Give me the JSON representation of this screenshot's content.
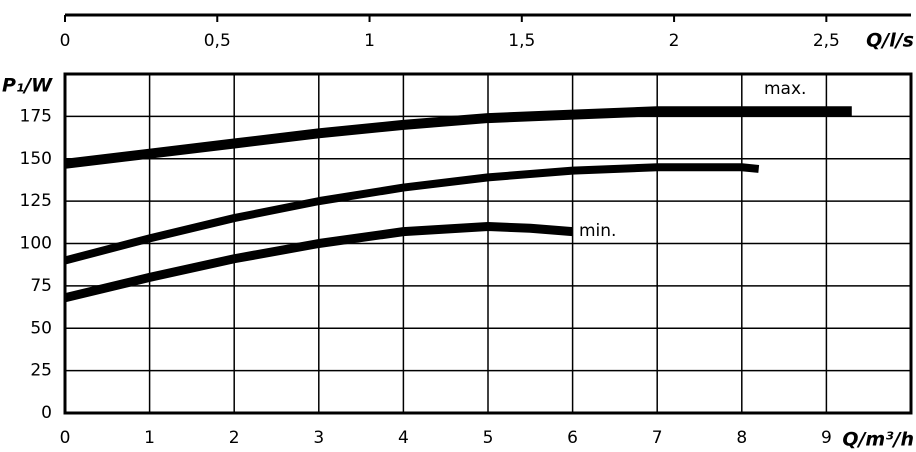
{
  "chart_data": {
    "type": "line",
    "y_label": "P₁/W",
    "x_label": "Q/m³/h",
    "x2_label": "Q/l/s",
    "xlim": [
      0,
      10
    ],
    "xticks": [
      0,
      1,
      2,
      3,
      4,
      5,
      6,
      7,
      8,
      9
    ],
    "x2lim": [
      0,
      2.778
    ],
    "x2ticks": [
      0,
      {
        "value": 0.5,
        "label": "0,5"
      },
      1,
      {
        "value": 1.5,
        "label": "1,5"
      },
      2,
      {
        "value": 2.5,
        "label": "2,5"
      }
    ],
    "ylim": [
      0,
      200
    ],
    "yticks": [
      0,
      25,
      50,
      75,
      100,
      125,
      150,
      175
    ],
    "grid": true,
    "series": [
      {
        "color": "#000000",
        "x": [
          0,
          1,
          2,
          3,
          4,
          5,
          6,
          7,
          8,
          9.3
        ],
        "values": [
          147,
          153,
          159,
          165,
          170,
          174,
          176,
          178,
          178,
          178
        ]
      },
      {
        "color": "#000000",
        "x": [
          0,
          1,
          2,
          3,
          4,
          5,
          6,
          7,
          8,
          8.2
        ],
        "values": [
          90,
          103,
          115,
          125,
          133,
          139,
          143,
          145,
          145,
          144
        ]
      },
      {
        "color": "#000000",
        "x": [
          0,
          1,
          2,
          3,
          4,
          5,
          5.5,
          6
        ],
        "values": [
          68,
          80,
          91,
          100,
          107,
          110,
          109,
          107
        ]
      }
    ],
    "annotations": [
      "max.",
      "min."
    ]
  }
}
